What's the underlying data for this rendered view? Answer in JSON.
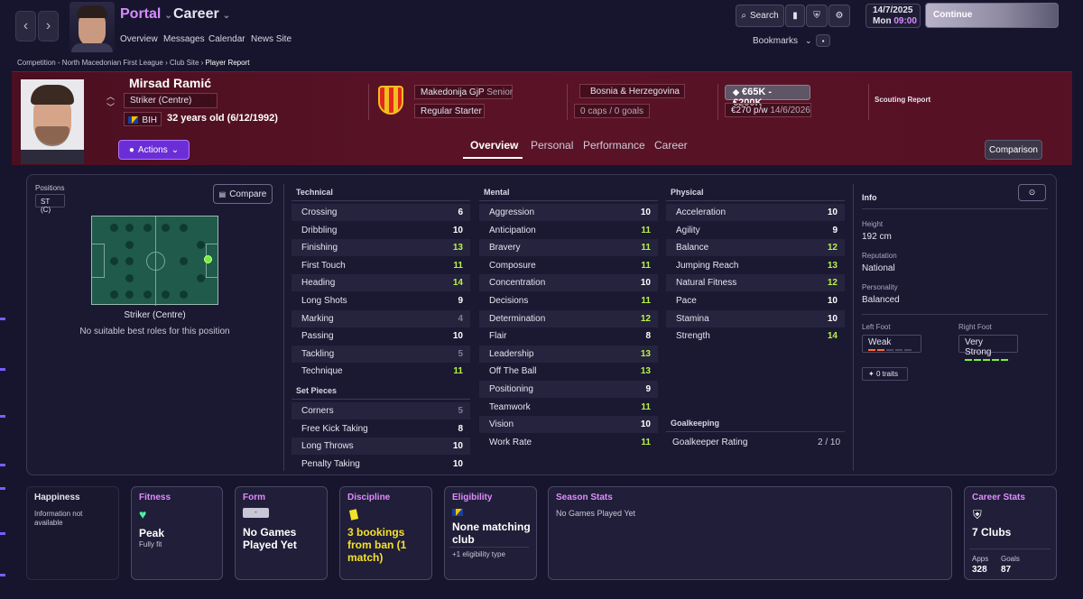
{
  "header": {
    "portal": "Portal",
    "career": "Career",
    "nav": [
      "Overview",
      "Messages",
      "Calendar",
      "News Site"
    ],
    "search": "Search",
    "bookmarks": "Bookmarks",
    "date": "14/7/2025",
    "day": "Mon",
    "time": "09:00",
    "continue": "Continue"
  },
  "breadcrumb": [
    "Competition - North Macedonian First League",
    "Club Site",
    "Player Report"
  ],
  "player": {
    "name": "Mirsad Ramić",
    "position": "Striker (Centre)",
    "nation_code": "BIH",
    "age": "32 years old (6/12/1992)",
    "actions": "Actions",
    "club": "Makedonija GjP",
    "club_status": "Senior",
    "squad_status": "Regular Starter",
    "nation": "Bosnia & Herzegovina",
    "caps": "0 caps / 0 goals",
    "value": "€65K - €200K",
    "wage": "€270 p/w",
    "contract": "14/6/2026",
    "scouting": "Scouting Report"
  },
  "tabs": [
    "Overview",
    "Personal",
    "Performance",
    "Career"
  ],
  "comparison": "Comparison",
  "positions": {
    "label": "Positions",
    "tag": "ST (C)",
    "compare": "Compare",
    "role_name": "Striker (Centre)",
    "role_note": "No suitable best roles for this position"
  },
  "technical": {
    "title": "Technical",
    "attrs": [
      [
        "Crossing",
        6
      ],
      [
        "Dribbling",
        10
      ],
      [
        "Finishing",
        13
      ],
      [
        "First Touch",
        11
      ],
      [
        "Heading",
        14
      ],
      [
        "Long Shots",
        9
      ],
      [
        "Marking",
        4
      ],
      [
        "Passing",
        10
      ],
      [
        "Tackling",
        5
      ],
      [
        "Technique",
        11
      ]
    ]
  },
  "set_pieces": {
    "title": "Set Pieces",
    "attrs": [
      [
        "Corners",
        5
      ],
      [
        "Free Kick Taking",
        8
      ],
      [
        "Long Throws",
        10
      ],
      [
        "Penalty Taking",
        10
      ]
    ]
  },
  "mental": {
    "title": "Mental",
    "attrs": [
      [
        "Aggression",
        10
      ],
      [
        "Anticipation",
        11
      ],
      [
        "Bravery",
        11
      ],
      [
        "Composure",
        11
      ],
      [
        "Concentration",
        10
      ],
      [
        "Decisions",
        11
      ],
      [
        "Determination",
        12
      ],
      [
        "Flair",
        8
      ],
      [
        "Leadership",
        13
      ],
      [
        "Off The Ball",
        13
      ],
      [
        "Positioning",
        9
      ],
      [
        "Teamwork",
        11
      ],
      [
        "Vision",
        10
      ],
      [
        "Work Rate",
        11
      ]
    ]
  },
  "physical": {
    "title": "Physical",
    "attrs": [
      [
        "Acceleration",
        10
      ],
      [
        "Agility",
        9
      ],
      [
        "Balance",
        12
      ],
      [
        "Jumping Reach",
        13
      ],
      [
        "Natural Fitness",
        12
      ],
      [
        "Pace",
        10
      ],
      [
        "Stamina",
        10
      ],
      [
        "Strength",
        14
      ]
    ]
  },
  "goalkeeping": {
    "title": "Goalkeeping",
    "label": "Goalkeeper Rating",
    "value": "2 / 10"
  },
  "info": {
    "title": "Info",
    "height_label": "Height",
    "height": "192 cm",
    "reputation_label": "Reputation",
    "reputation": "National",
    "personality_label": "Personality",
    "personality": "Balanced",
    "left_foot_label": "Left Foot",
    "left_foot": "Weak",
    "left_foot_level": 2,
    "right_foot_label": "Right Foot",
    "right_foot": "Very Strong",
    "right_foot_level": 5,
    "traits": "0 traits"
  },
  "cards": {
    "happiness_title": "Happiness",
    "happiness_text": "Information not available",
    "fitness_title": "Fitness",
    "fitness_value": "Peak",
    "fitness_sub": "Fully fit",
    "form_title": "Form",
    "form_badge": "-",
    "form_value": "No Games Played Yet",
    "discipline_title": "Discipline",
    "discipline_value": "3 bookings from ban (1 match)",
    "eligibility_title": "Eligibility",
    "eligibility_value": "None matching club",
    "eligibility_sub": "+1 eligibility type",
    "season_title": "Season Stats",
    "season_text": "No Games Played Yet",
    "career_title": "Career Stats",
    "career_clubs": "7 Clubs",
    "apps_label": "Apps",
    "apps": "328",
    "goals_label": "Goals",
    "goals": "87"
  }
}
